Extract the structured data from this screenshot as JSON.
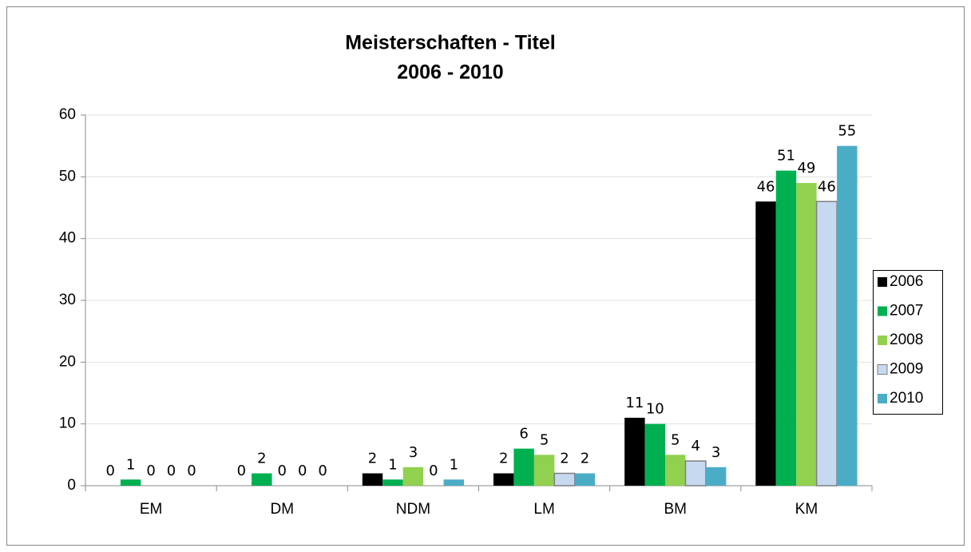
{
  "chart_data": {
    "type": "bar",
    "title": "Meisterschaften - Titel",
    "subtitle": "2006 - 2010",
    "categories": [
      "EM",
      "DM",
      "NDM",
      "LM",
      "BM",
      "KM"
    ],
    "series": [
      {
        "name": "2006",
        "color": "#000000",
        "values": [
          0,
          0,
          2,
          2,
          11,
          46
        ]
      },
      {
        "name": "2007",
        "color": "#00b050",
        "values": [
          1,
          2,
          1,
          6,
          10,
          51
        ]
      },
      {
        "name": "2008",
        "color": "#92d050",
        "values": [
          0,
          0,
          3,
          5,
          5,
          49
        ]
      },
      {
        "name": "2009",
        "color": "#c6d9f1",
        "values": [
          0,
          0,
          0,
          2,
          4,
          46
        ]
      },
      {
        "name": "2010",
        "color": "#4bacc6",
        "values": [
          0,
          0,
          1,
          2,
          3,
          55
        ]
      }
    ],
    "ylim": [
      0,
      60
    ],
    "yticks": [
      0,
      10,
      20,
      30,
      40,
      50,
      60
    ],
    "grid": true,
    "legend": "right"
  }
}
